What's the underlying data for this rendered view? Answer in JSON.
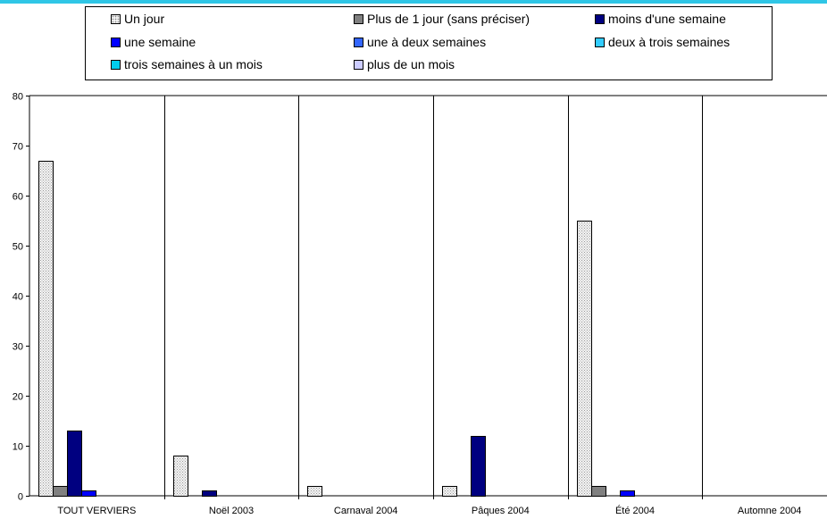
{
  "chart_data": {
    "type": "bar",
    "title": "",
    "xlabel": "",
    "ylabel": "",
    "ylim": [
      0,
      80
    ],
    "yticks": [
      0,
      10,
      20,
      30,
      40,
      50,
      60,
      70,
      80
    ],
    "grid": "vertical category separators",
    "legend_position": "top",
    "categories": [
      "TOUT VERVIERS",
      "Noël 2003",
      "Carnaval 2004",
      "Pâques 2004",
      "Été 2004",
      "Automne 2004"
    ],
    "series": [
      {
        "name": "Un jour",
        "color": "#f2f2f2",
        "pattern": "dots",
        "values": [
          67,
          8,
          2,
          2,
          55,
          0
        ]
      },
      {
        "name": "Plus de 1 jour (sans préciser)",
        "color": "#808080",
        "values": [
          2,
          0,
          0,
          0,
          2,
          0
        ]
      },
      {
        "name": "moins d'une semaine",
        "color": "#000080",
        "values": [
          13,
          1,
          0,
          12,
          0,
          0
        ]
      },
      {
        "name": "une semaine",
        "color": "#0000ff",
        "values": [
          1,
          0,
          0,
          0,
          1,
          0
        ]
      },
      {
        "name": "une à deux semaines",
        "color": "#3366ff",
        "values": [
          0,
          0,
          0,
          0,
          0,
          0
        ]
      },
      {
        "name": "deux à trois semaines",
        "color": "#33ccff",
        "values": [
          0,
          0,
          0,
          0,
          0,
          0
        ]
      },
      {
        "name": "trois semaines à un mois",
        "color": "#00ccee",
        "values": [
          0,
          0,
          0,
          0,
          0,
          0
        ]
      },
      {
        "name": "plus de un mois",
        "color": "#ccccff",
        "values": [
          0,
          0,
          0,
          0,
          0,
          0
        ]
      }
    ]
  }
}
